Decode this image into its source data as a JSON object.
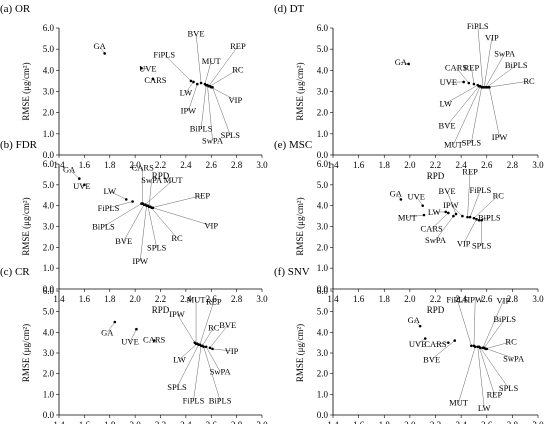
{
  "chart_data": [
    {
      "type": "scatter",
      "title": "(a) OR",
      "xlabel": "RPD",
      "ylabel": "RMSE (μg/cm²)",
      "xlim": [
        1.4,
        3.0
      ],
      "ylim": [
        0.0,
        6.0
      ],
      "xticks": [
        "1.4",
        "1.6",
        "1.8",
        "2.0",
        "2.2",
        "2.4",
        "2.6",
        "2.8",
        "3.0"
      ],
      "yticks": [
        "0.0",
        "1.0",
        "2.0",
        "3.0",
        "4.0",
        "5.0",
        "6.0"
      ],
      "grid": false,
      "points": [
        {
          "label": "GA",
          "x": 1.76,
          "y": 4.8,
          "lx": 1.72,
          "ly": 5.0
        },
        {
          "label": "UVE",
          "x": 2.05,
          "y": 4.1,
          "lx": 2.1,
          "ly": 3.95
        },
        {
          "label": "CARS",
          "x": 2.14,
          "y": 3.6,
          "lx": 2.16,
          "ly": 3.4
        },
        {
          "label": "FiPLS",
          "x": 2.44,
          "y": 3.5,
          "lx": 2.23,
          "ly": 4.6
        },
        {
          "label": "LW",
          "x": 2.46,
          "y": 3.45,
          "lx": 2.4,
          "ly": 2.8
        },
        {
          "label": "BVE",
          "x": 2.52,
          "y": 3.4,
          "lx": 2.48,
          "ly": 5.6
        },
        {
          "label": "IPW",
          "x": 2.49,
          "y": 3.35,
          "lx": 2.42,
          "ly": 1.95
        },
        {
          "label": "MUT",
          "x": 2.55,
          "y": 3.35,
          "lx": 2.6,
          "ly": 4.3
        },
        {
          "label": "BiPLS",
          "x": 2.56,
          "y": 3.3,
          "lx": 2.52,
          "ly": 1.1
        },
        {
          "label": "SwPA",
          "x": 2.57,
          "y": 3.3,
          "lx": 2.61,
          "ly": 0.55
        },
        {
          "label": "REP",
          "x": 2.58,
          "y": 3.25,
          "lx": 2.81,
          "ly": 5.0
        },
        {
          "label": "RC",
          "x": 2.59,
          "y": 3.25,
          "lx": 2.81,
          "ly": 3.9
        },
        {
          "label": "VIP",
          "x": 2.6,
          "y": 3.2,
          "lx": 2.79,
          "ly": 2.45
        },
        {
          "label": "SPLS",
          "x": 2.61,
          "y": 3.2,
          "lx": 2.75,
          "ly": 0.8
        }
      ]
    },
    {
      "type": "scatter",
      "title": "(b) FDR",
      "xlabel": "RPD",
      "ylabel": "RMSE (μg/cm²)",
      "xlim": [
        1.4,
        3.0
      ],
      "ylim": [
        0.0,
        6.0
      ],
      "xticks": [
        "1.4",
        "1.6",
        "1.8",
        "2.0",
        "2.2",
        "2.4",
        "2.6",
        "2.8",
        "3.0"
      ],
      "yticks": [
        "0.0",
        "1.0",
        "2.0",
        "3.0",
        "4.0",
        "5.0",
        "6.0"
      ],
      "grid": false,
      "points": [
        {
          "label": "GA",
          "x": 1.56,
          "y": 5.3,
          "lx": 1.48,
          "ly": 5.6
        },
        {
          "label": "UVE",
          "x": 1.6,
          "y": 5.0,
          "lx": 1.58,
          "ly": 4.8
        },
        {
          "label": "LW",
          "x": 1.93,
          "y": 4.3,
          "lx": 1.8,
          "ly": 4.55
        },
        {
          "label": "FiPLS",
          "x": 1.98,
          "y": 4.2,
          "lx": 1.79,
          "ly": 3.75
        },
        {
          "label": "BiPLS",
          "x": 2.05,
          "y": 4.1,
          "lx": 1.75,
          "ly": 2.85
        },
        {
          "label": "CARS",
          "x": 2.06,
          "y": 4.1,
          "lx": 2.06,
          "ly": 5.7
        },
        {
          "label": "BVE",
          "x": 2.07,
          "y": 4.05,
          "lx": 1.91,
          "ly": 2.15
        },
        {
          "label": "MUT",
          "x": 2.08,
          "y": 4.05,
          "lx": 2.3,
          "ly": 5.1
        },
        {
          "label": "IPW",
          "x": 2.09,
          "y": 4.0,
          "lx": 2.04,
          "ly": 1.2
        },
        {
          "label": "SPLS",
          "x": 2.1,
          "y": 4.0,
          "lx": 2.17,
          "ly": 1.85
        },
        {
          "label": "SwPA",
          "x": 2.11,
          "y": 3.95,
          "lx": 2.13,
          "ly": 5.1
        },
        {
          "label": "RC",
          "x": 2.12,
          "y": 3.95,
          "lx": 2.33,
          "ly": 2.3
        },
        {
          "label": "REP",
          "x": 2.13,
          "y": 3.9,
          "lx": 2.53,
          "ly": 4.35
        },
        {
          "label": "VIP",
          "x": 2.14,
          "y": 3.9,
          "lx": 2.6,
          "ly": 2.9
        }
      ]
    },
    {
      "type": "scatter",
      "title": "(c) CR",
      "xlabel": "RPD",
      "ylabel": "RMSE (μg/cm²)",
      "xlim": [
        1.4,
        3.0
      ],
      "ylim": [
        0.0,
        6.0
      ],
      "xticks": [
        "1.4",
        "1.6",
        "1.8",
        "2.0",
        "2.2",
        "2.4",
        "2.6",
        "2.8",
        "3.0"
      ],
      "yticks": [
        "0.0",
        "1.0",
        "2.0",
        "3.0",
        "4.0",
        "5.0",
        "6.0"
      ],
      "grid": false,
      "points": [
        {
          "label": "GA",
          "x": 1.84,
          "y": 4.5,
          "lx": 1.78,
          "ly": 3.85
        },
        {
          "label": "UVE",
          "x": 2.01,
          "y": 4.15,
          "lx": 1.96,
          "ly": 3.4
        },
        {
          "label": "CARS",
          "x": 2.15,
          "y": 3.6,
          "lx": 2.15,
          "ly": 3.5
        },
        {
          "label": "IPW",
          "x": 2.47,
          "y": 3.5,
          "lx": 2.33,
          "ly": 4.75
        },
        {
          "label": "MUT",
          "x": 2.48,
          "y": 3.45,
          "lx": 2.48,
          "ly": 5.45
        },
        {
          "label": "LW",
          "x": 2.49,
          "y": 3.45,
          "lx": 2.35,
          "ly": 2.55
        },
        {
          "label": "SPLS",
          "x": 2.5,
          "y": 3.4,
          "lx": 2.33,
          "ly": 1.2
        },
        {
          "label": "REP",
          "x": 2.51,
          "y": 3.4,
          "lx": 2.62,
          "ly": 5.35
        },
        {
          "label": "FiPLS",
          "x": 2.52,
          "y": 3.35,
          "lx": 2.46,
          "ly": 0.55
        },
        {
          "label": "RC",
          "x": 2.53,
          "y": 3.35,
          "lx": 2.62,
          "ly": 4.1
        },
        {
          "label": "BiPLS",
          "x": 2.54,
          "y": 3.3,
          "lx": 2.67,
          "ly": 0.55
        },
        {
          "label": "SwPA",
          "x": 2.56,
          "y": 3.3,
          "lx": 2.67,
          "ly": 1.95
        },
        {
          "label": "BVE",
          "x": 2.59,
          "y": 3.25,
          "lx": 2.73,
          "ly": 4.2
        },
        {
          "label": "VIP",
          "x": 2.61,
          "y": 3.2,
          "lx": 2.76,
          "ly": 2.95
        }
      ]
    },
    {
      "type": "scatter",
      "title": "(d) DT",
      "xlabel": "RPD",
      "ylabel": "RMSE (μg/cm²)",
      "xlim": [
        1.4,
        3.0
      ],
      "ylim": [
        0.0,
        6.0
      ],
      "xticks": [
        "1.4",
        "1.6",
        "1.8",
        "2.0",
        "2.2",
        "2.4",
        "2.6",
        "2.8",
        "3.0"
      ],
      "yticks": [
        "0.0",
        "1.0",
        "2.0",
        "3.0",
        "4.0",
        "5.0",
        "6.0"
      ],
      "grid": false,
      "points": [
        {
          "label": "GA",
          "x": 1.99,
          "y": 4.3,
          "lx": 1.93,
          "ly": 4.25
        },
        {
          "label": "UVE",
          "x": 2.42,
          "y": 3.45,
          "lx": 2.3,
          "ly": 3.3
        },
        {
          "label": "CARS",
          "x": 2.46,
          "y": 3.4,
          "lx": 2.36,
          "ly": 4.0
        },
        {
          "label": "REP",
          "x": 2.5,
          "y": 3.35,
          "lx": 2.48,
          "ly": 4.0
        },
        {
          "label": "LW",
          "x": 2.53,
          "y": 3.3,
          "lx": 2.28,
          "ly": 2.3
        },
        {
          "label": "BVE",
          "x": 2.54,
          "y": 3.25,
          "lx": 2.29,
          "ly": 1.25
        },
        {
          "label": "MUT",
          "x": 2.55,
          "y": 3.25,
          "lx": 2.34,
          "ly": 0.35
        },
        {
          "label": "SPLS",
          "x": 2.56,
          "y": 3.2,
          "lx": 2.48,
          "ly": 0.45
        },
        {
          "label": "FiPLS",
          "x": 2.57,
          "y": 3.2,
          "lx": 2.53,
          "ly": 5.95
        },
        {
          "label": "VIP",
          "x": 2.58,
          "y": 3.2,
          "lx": 2.64,
          "ly": 5.4
        },
        {
          "label": "SwPA",
          "x": 2.59,
          "y": 3.2,
          "lx": 2.74,
          "ly": 4.65
        },
        {
          "label": "BiPLS",
          "x": 2.6,
          "y": 3.2,
          "lx": 2.83,
          "ly": 4.1
        },
        {
          "label": "RC",
          "x": 2.61,
          "y": 3.2,
          "lx": 2.93,
          "ly": 3.35
        },
        {
          "label": "IPW",
          "x": 2.62,
          "y": 3.2,
          "lx": 2.7,
          "ly": 0.7
        }
      ]
    },
    {
      "type": "scatter",
      "title": "(e) MSC",
      "xlabel": "RPD",
      "ylabel": "RMSE (μg/cm²)",
      "xlim": [
        1.4,
        3.0
      ],
      "ylim": [
        0.0,
        6.0
      ],
      "xticks": [
        "1.4",
        "1.6",
        "1.8",
        "2.0",
        "2.2",
        "2.4",
        "2.6",
        "2.8",
        "3.0"
      ],
      "yticks": [
        "0.0",
        "1.0",
        "2.0",
        "3.0",
        "4.0",
        "5.0",
        "6.0"
      ],
      "grid": false,
      "points": [
        {
          "label": "GA",
          "x": 1.93,
          "y": 4.3,
          "lx": 1.89,
          "ly": 4.45
        },
        {
          "label": "UVE",
          "x": 2.1,
          "y": 4.0,
          "lx": 2.05,
          "ly": 4.3
        },
        {
          "label": "MUT",
          "x": 2.11,
          "y": 3.55,
          "lx": 1.98,
          "ly": 3.3
        },
        {
          "label": "LW",
          "x": 2.28,
          "y": 3.7,
          "lx": 2.19,
          "ly": 3.55
        },
        {
          "label": "CARS",
          "x": 2.3,
          "y": 3.65,
          "lx": 2.17,
          "ly": 2.75
        },
        {
          "label": "SwPA",
          "x": 2.34,
          "y": 3.5,
          "lx": 2.2,
          "ly": 2.2
        },
        {
          "label": "BVE",
          "x": 2.36,
          "y": 3.6,
          "lx": 2.29,
          "ly": 4.55
        },
        {
          "label": "IPW",
          "x": 2.41,
          "y": 3.5,
          "lx": 2.32,
          "ly": 3.9
        },
        {
          "label": "REP",
          "x": 2.45,
          "y": 3.45,
          "lx": 2.47,
          "ly": 5.5
        },
        {
          "label": "FiPLS",
          "x": 2.47,
          "y": 3.45,
          "lx": 2.55,
          "ly": 4.6
        },
        {
          "label": "RC",
          "x": 2.5,
          "y": 3.4,
          "lx": 2.69,
          "ly": 4.35
        },
        {
          "label": "VIP",
          "x": 2.52,
          "y": 3.35,
          "lx": 2.42,
          "ly": 2.05
        },
        {
          "label": "BiPLS",
          "x": 2.54,
          "y": 3.3,
          "lx": 2.62,
          "ly": 3.3
        },
        {
          "label": "SPLS",
          "x": 2.56,
          "y": 3.3,
          "lx": 2.56,
          "ly": 1.95
        }
      ]
    },
    {
      "type": "scatter",
      "title": "(f) SNV",
      "xlabel": "RPD",
      "ylabel": "RMSE (μg/cm²)",
      "xlim": [
        1.4,
        3.0
      ],
      "ylim": [
        0.0,
        6.0
      ],
      "xticks": [
        "1.4",
        "1.6",
        "1.8",
        "2.0",
        "2.2",
        "2.4",
        "2.6",
        "2.8",
        "3.0"
      ],
      "yticks": [
        "0.0",
        "1.0",
        "2.0",
        "3.0",
        "4.0",
        "5.0",
        "6.0"
      ],
      "grid": false,
      "points": [
        {
          "label": "GA",
          "x": 2.08,
          "y": 4.3,
          "lx": 2.03,
          "ly": 4.45
        },
        {
          "label": "UVE",
          "x": 2.12,
          "y": 3.7,
          "lx": 2.06,
          "ly": 3.3
        },
        {
          "label": "CARS",
          "x": 2.3,
          "y": 3.5,
          "lx": 2.2,
          "ly": 3.3
        },
        {
          "label": "BVE",
          "x": 2.35,
          "y": 3.6,
          "lx": 2.17,
          "ly": 2.55
        },
        {
          "label": "FiPLS",
          "x": 2.48,
          "y": 3.35,
          "lx": 2.37,
          "ly": 5.45
        },
        {
          "label": "IPW",
          "x": 2.5,
          "y": 3.35,
          "lx": 2.51,
          "ly": 5.45
        },
        {
          "label": "MUT",
          "x": 2.51,
          "y": 3.3,
          "lx": 2.38,
          "ly": 0.45
        },
        {
          "label": "LW",
          "x": 2.53,
          "y": 3.3,
          "lx": 2.58,
          "ly": 0.2
        },
        {
          "label": "REP",
          "x": 2.54,
          "y": 3.3,
          "lx": 2.66,
          "ly": 0.85
        },
        {
          "label": "SPLS",
          "x": 2.55,
          "y": 3.25,
          "lx": 2.77,
          "ly": 1.15
        },
        {
          "label": "VIP",
          "x": 2.57,
          "y": 3.25,
          "lx": 2.73,
          "ly": 5.4
        },
        {
          "label": "BiPLS",
          "x": 2.58,
          "y": 3.25,
          "lx": 2.74,
          "ly": 4.5
        },
        {
          "label": "RC",
          "x": 2.59,
          "y": 3.2,
          "lx": 2.79,
          "ly": 3.4
        },
        {
          "label": "SwPA",
          "x": 2.6,
          "y": 3.2,
          "lx": 2.81,
          "ly": 2.6
        }
      ]
    }
  ]
}
